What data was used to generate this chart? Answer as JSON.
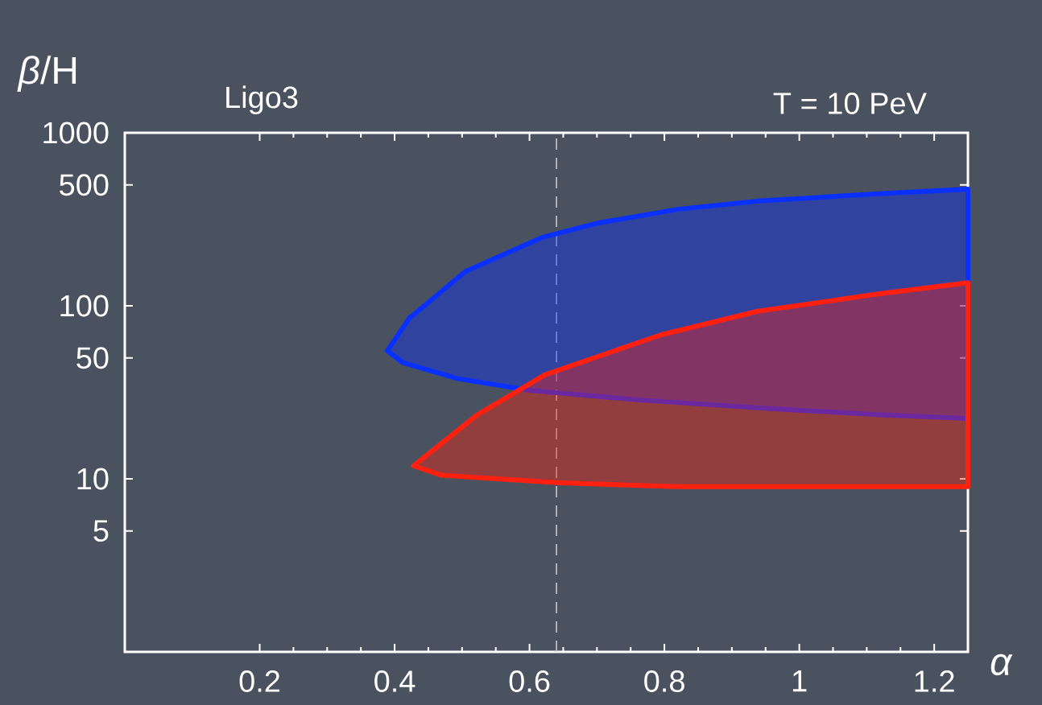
{
  "chart_data": {
    "type": "area",
    "xlabel": "*α*",
    "ylabel": "*β*/H",
    "annotations": [
      "Ligo3",
      "T = 10 PeV"
    ],
    "log": "y",
    "xlim": [
      0,
      1.25
    ],
    "ylim": [
      1,
      1000
    ],
    "xticks": [
      0.2,
      0.4,
      0.6,
      0.8,
      1,
      1.2
    ],
    "yticks": [
      5,
      10,
      50,
      100,
      500,
      1000
    ],
    "ref_lines": [
      {
        "axis": "x",
        "value": 0.64,
        "line_style": "dashed",
        "color": "#c8c8c8"
      }
    ],
    "series": [
      {
        "color": "#0a30ff",
        "x": [
          1.25,
          1.116,
          0.938,
          0.819,
          0.701,
          0.618,
          0.505,
          0.422,
          0.389,
          0.412,
          0.493,
          0.6,
          0.76,
          0.938,
          1.116,
          1.25
        ],
        "values": [
          472,
          444,
          403,
          361,
          301,
          248,
          158,
          85,
          55,
          47,
          38,
          32.5,
          28.6,
          25.7,
          23.5,
          22.3
        ]
      },
      {
        "color": "#ff2010",
        "x": [
          1.25,
          1.116,
          0.938,
          0.795,
          0.623,
          0.523,
          0.428,
          0.469,
          0.641,
          0.819,
          1.25
        ],
        "values": [
          136,
          117,
          93,
          68,
          40,
          23.5,
          11.9,
          10.5,
          9.5,
          9.0,
          9.0
        ]
      }
    ]
  }
}
